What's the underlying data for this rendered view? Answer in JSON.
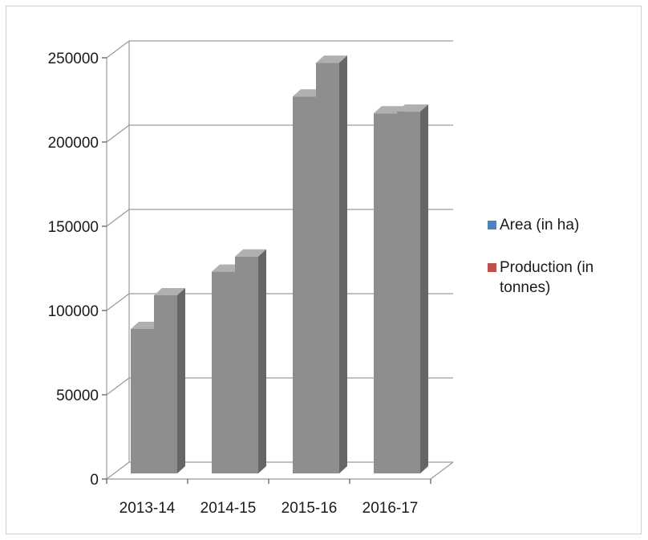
{
  "chart_data": {
    "type": "bar",
    "title": "",
    "xlabel": "",
    "ylabel": "",
    "categories": [
      "2013-14",
      "2014-15",
      "2015-16",
      "2016-17"
    ],
    "series": [
      {
        "name": "Area (in ha)",
        "color": "#4f81bd",
        "values": [
          90000,
          124000,
          228000,
          218000
        ]
      },
      {
        "name": "Production (in tonnes)",
        "color": "#c0504d",
        "values": [
          110000,
          133000,
          248000,
          219000
        ]
      }
    ],
    "bar_render_color": "#8c8c8c",
    "ylim": [
      0,
      250000
    ],
    "yticks": [
      "0",
      "50000",
      "100000",
      "150000",
      "200000",
      "250000"
    ],
    "grid": true,
    "legend_position": "right",
    "style": "3d-clustered-column"
  }
}
